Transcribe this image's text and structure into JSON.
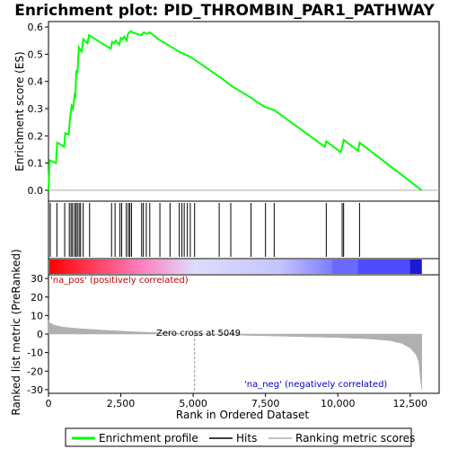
{
  "title": "Enrichment plot: PID_THROMBIN_PAR1_PATHWAY",
  "chart_data": [
    {
      "type": "line",
      "panel": "enrichment-profile",
      "ylabel": "Enrichment score (ES)",
      "ylim": [
        -0.04,
        0.62
      ],
      "yticks": [
        0.0,
        0.1,
        0.2,
        0.3,
        0.4,
        0.5,
        0.6
      ],
      "ytick_labels": [
        "0.0",
        "0.1",
        "0.2",
        "0.3",
        "0.4",
        "0.5",
        "0.6"
      ],
      "xlim": [
        0,
        13500
      ],
      "color": "#00ff00",
      "x": [
        0,
        40,
        260,
        300,
        540,
        580,
        700,
        740,
        800,
        850,
        900,
        930,
        960,
        1000,
        1050,
        1100,
        1150,
        1200,
        1350,
        1400,
        2150,
        2200,
        2280,
        2320,
        2450,
        2500,
        2560,
        2620,
        2700,
        2750,
        2800,
        2850,
        2900,
        3200,
        3250,
        3300,
        3400,
        3500,
        3800,
        4200,
        4500,
        4600,
        4700,
        4800,
        4900,
        5050,
        6000,
        6300,
        7000,
        7200,
        7500,
        7800,
        9550,
        9600,
        10100,
        10150,
        10200,
        10700,
        10750,
        12900
      ],
      "y": [
        0.0,
        0.11,
        0.1,
        0.175,
        0.16,
        0.21,
        0.205,
        0.26,
        0.31,
        0.3,
        0.35,
        0.345,
        0.44,
        0.43,
        0.525,
        0.515,
        0.51,
        0.555,
        0.54,
        0.57,
        0.52,
        0.545,
        0.54,
        0.55,
        0.535,
        0.56,
        0.555,
        0.565,
        0.55,
        0.575,
        0.58,
        0.585,
        0.58,
        0.57,
        0.575,
        0.58,
        0.575,
        0.58,
        0.555,
        0.53,
        0.51,
        0.505,
        0.5,
        0.495,
        0.49,
        0.48,
        0.41,
        0.385,
        0.34,
        0.325,
        0.305,
        0.295,
        0.16,
        0.18,
        0.14,
        0.16,
        0.185,
        0.145,
        0.175,
        0.0
      ]
    },
    {
      "type": "scatter",
      "panel": "hits",
      "hits": [
        60,
        290,
        560,
        720,
        780,
        830,
        900,
        950,
        1000,
        1060,
        1110,
        1200,
        1420,
        2180,
        2300,
        2470,
        2530,
        2690,
        2760,
        2810,
        2870,
        3220,
        3280,
        3380,
        3500,
        3850,
        4200,
        4520,
        4610,
        4690,
        4800,
        4900,
        5050,
        5900,
        6300,
        7000,
        7500,
        7800,
        9600,
        10150,
        10200,
        10750
      ]
    },
    {
      "type": "heatmap",
      "panel": "ranking-heatmap",
      "blend_x": [
        0,
        3200,
        5049,
        8000,
        12900
      ],
      "blend_colors": [
        "#ff0000",
        "#ff80c0",
        "#dcdcff",
        "#c4c4ff",
        "#0000ff"
      ],
      "dark_segments": [
        {
          "x0": 9800,
          "x1": 10700,
          "color": "#6a6aff"
        },
        {
          "x0": 10700,
          "x1": 12500,
          "color": "#4d4dff"
        },
        {
          "x0": 12500,
          "x1": 12900,
          "color": "#1a1ad0"
        }
      ]
    },
    {
      "type": "area",
      "panel": "ranked-list-metric",
      "ylabel": "Ranked list metric (PreRanked)",
      "xlabel": "Rank in Ordered Dataset",
      "ylim": [
        -32,
        32
      ],
      "yticks": [
        -30,
        -20,
        -10,
        0,
        10,
        20,
        30
      ],
      "ytick_labels": [
        "-30",
        "-20",
        "-10",
        "0",
        "10",
        "20",
        "30"
      ],
      "xlim": [
        0,
        13500
      ],
      "xticks": [
        0,
        2500,
        5000,
        7500,
        10000,
        12500
      ],
      "xtick_labels": [
        "0",
        "2,500",
        "5,000",
        "7,500",
        "10,000",
        "12,500"
      ],
      "color": "#b0b0b0",
      "x": [
        0,
        50,
        200,
        500,
        1000,
        2000,
        3000,
        4000,
        5049,
        6000,
        7000,
        8000,
        9000,
        10000,
        11000,
        11800,
        12200,
        12500,
        12700,
        12800,
        12850,
        12900
      ],
      "y": [
        7.5,
        6.0,
        4.8,
        3.8,
        3.0,
        2.0,
        1.2,
        0.6,
        0.0,
        -0.4,
        -0.8,
        -1.1,
        -1.5,
        -1.9,
        -2.5,
        -3.5,
        -5.0,
        -7.5,
        -11.0,
        -15.0,
        -24.0,
        -30.0
      ],
      "zero_cross_x": 5049,
      "zero_cross_label": "Zero cross at 5049",
      "pos_label": "'na_pos' (positively correlated)",
      "neg_label": "'na_neg' (negatively correlated)",
      "pos_color": "#cc0000",
      "neg_color": "#0000cc"
    }
  ],
  "legend": {
    "items": [
      {
        "label": "Enrichment profile",
        "color": "#00ff00"
      },
      {
        "label": "Hits",
        "color": "#000000"
      },
      {
        "label": "Ranking metric scores",
        "color": "#b0b0b0"
      }
    ]
  }
}
